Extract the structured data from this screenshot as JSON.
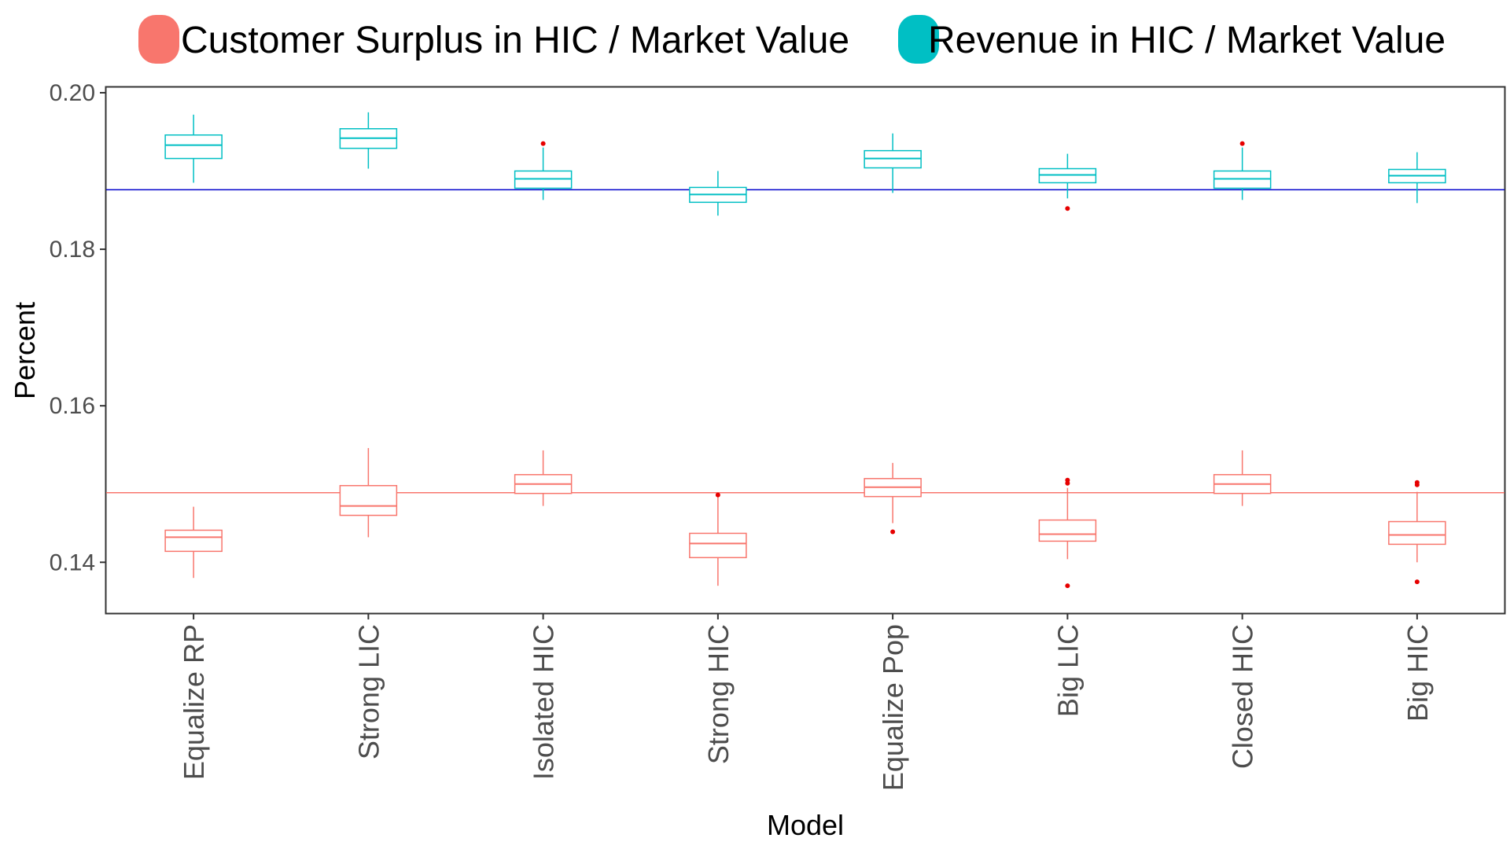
{
  "chart_data": {
    "type": "boxplot",
    "xlabel": "Model",
    "ylabel": "Percent",
    "ylim": [
      0.1335,
      0.2007
    ],
    "yticks": [
      0.14,
      0.16,
      0.18,
      0.2
    ],
    "ytick_labels": [
      "0.14",
      "0.16",
      "0.18",
      "0.20"
    ],
    "categories": [
      "Equalize RP",
      "Strong LIC",
      "Isolated HIC",
      "Strong HIC",
      "Equalize Pop",
      "Big LIC",
      "Closed HIC",
      "Big HIC"
    ],
    "grid": false,
    "legend_position": "top",
    "series": [
      {
        "name": "Customer Surplus in HIC / Market Value",
        "color": "#F8766D",
        "outlier_color": "#E60000",
        "reference_line": 0.1489,
        "reference_color": "#F8766D",
        "boxes": [
          {
            "min": 0.138,
            "q1": 0.1414,
            "median": 0.1432,
            "q3": 0.1441,
            "max": 0.1471,
            "outliers": []
          },
          {
            "min": 0.1432,
            "q1": 0.146,
            "median": 0.1472,
            "q3": 0.1498,
            "max": 0.1546,
            "outliers": []
          },
          {
            "min": 0.1472,
            "q1": 0.1488,
            "median": 0.15,
            "q3": 0.1512,
            "max": 0.1543,
            "outliers": []
          },
          {
            "min": 0.137,
            "q1": 0.1406,
            "median": 0.1424,
            "q3": 0.1437,
            "max": 0.1485,
            "outliers": [
              0.1486
            ]
          },
          {
            "min": 0.145,
            "q1": 0.1484,
            "median": 0.1496,
            "q3": 0.1507,
            "max": 0.1527,
            "outliers": [
              0.1439
            ]
          },
          {
            "min": 0.1404,
            "q1": 0.1427,
            "median": 0.1436,
            "q3": 0.1454,
            "max": 0.1495,
            "outliers": [
              0.137,
              0.1501,
              0.1505
            ]
          },
          {
            "min": 0.1472,
            "q1": 0.1488,
            "median": 0.15,
            "q3": 0.1512,
            "max": 0.1543,
            "outliers": []
          },
          {
            "min": 0.14,
            "q1": 0.1423,
            "median": 0.1435,
            "q3": 0.1452,
            "max": 0.149,
            "outliers": [
              0.1375,
              0.1499,
              0.1502
            ]
          }
        ]
      },
      {
        "name": "Revenue in HIC / Market Value",
        "color": "#00BFC4",
        "outlier_color": "#E60000",
        "reference_line": 0.1876,
        "reference_color": "#0000CC",
        "boxes": [
          {
            "min": 0.1885,
            "q1": 0.1916,
            "median": 0.1933,
            "q3": 0.1946,
            "max": 0.1972,
            "outliers": []
          },
          {
            "min": 0.1903,
            "q1": 0.1929,
            "median": 0.1942,
            "q3": 0.1954,
            "max": 0.1975,
            "outliers": []
          },
          {
            "min": 0.1863,
            "q1": 0.1878,
            "median": 0.189,
            "q3": 0.19,
            "max": 0.193,
            "outliers": [
              0.1935
            ]
          },
          {
            "min": 0.1843,
            "q1": 0.186,
            "median": 0.187,
            "q3": 0.1879,
            "max": 0.19,
            "outliers": []
          },
          {
            "min": 0.1872,
            "q1": 0.1904,
            "median": 0.1916,
            "q3": 0.1926,
            "max": 0.1948,
            "outliers": []
          },
          {
            "min": 0.1865,
            "q1": 0.1885,
            "median": 0.1895,
            "q3": 0.1903,
            "max": 0.1922,
            "outliers": [
              0.1852
            ]
          },
          {
            "min": 0.1863,
            "q1": 0.1878,
            "median": 0.189,
            "q3": 0.19,
            "max": 0.193,
            "outliers": [
              0.1935
            ]
          },
          {
            "min": 0.1859,
            "q1": 0.1885,
            "median": 0.1894,
            "q3": 0.1902,
            "max": 0.1924,
            "outliers": []
          }
        ]
      }
    ]
  }
}
